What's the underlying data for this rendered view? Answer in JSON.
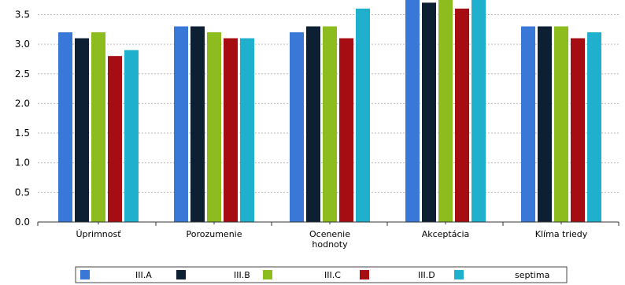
{
  "chart_data": {
    "type": "bar",
    "categories": [
      "Úprimnosť",
      "Porozumenie",
      "Ocenenie hodnoty",
      "Akceptácia",
      "Klíma triedy"
    ],
    "category_lines": [
      [
        "Úprimnosť"
      ],
      [
        "Porozumenie"
      ],
      [
        "Ocenenie",
        "hodnoty"
      ],
      [
        "Akceptácia"
      ],
      [
        "Klíma triedy"
      ]
    ],
    "series": [
      {
        "values": [
          3.2,
          3.3,
          3.2,
          3.8,
          3.3
        ],
        "color": "#3a78d8"
      },
      {
        "values": [
          3.1,
          3.3,
          3.3,
          3.7,
          3.3
        ],
        "color": "#0d1f33"
      },
      {
        "values": [
          3.2,
          3.2,
          3.3,
          3.8,
          3.3
        ],
        "color": "#8dbc1e"
      },
      {
        "values": [
          2.8,
          3.1,
          3.1,
          3.6,
          3.1
        ],
        "color": "#a50d12"
      },
      {
        "values": [
          2.9,
          3.1,
          3.6,
          3.8,
          3.2
        ],
        "color": "#1fb0cd"
      }
    ],
    "yticks": [
      "0.0",
      "0.5",
      "1.0",
      "1.5",
      "2.0",
      "2.5",
      "3.0",
      "3.5"
    ],
    "ylim": [
      0,
      3.7
    ],
    "grid": true,
    "legend": {
      "placement": "bottom",
      "labels": [
        "III.A",
        "III.B",
        "III.C",
        "III.D",
        "septima"
      ]
    }
  }
}
